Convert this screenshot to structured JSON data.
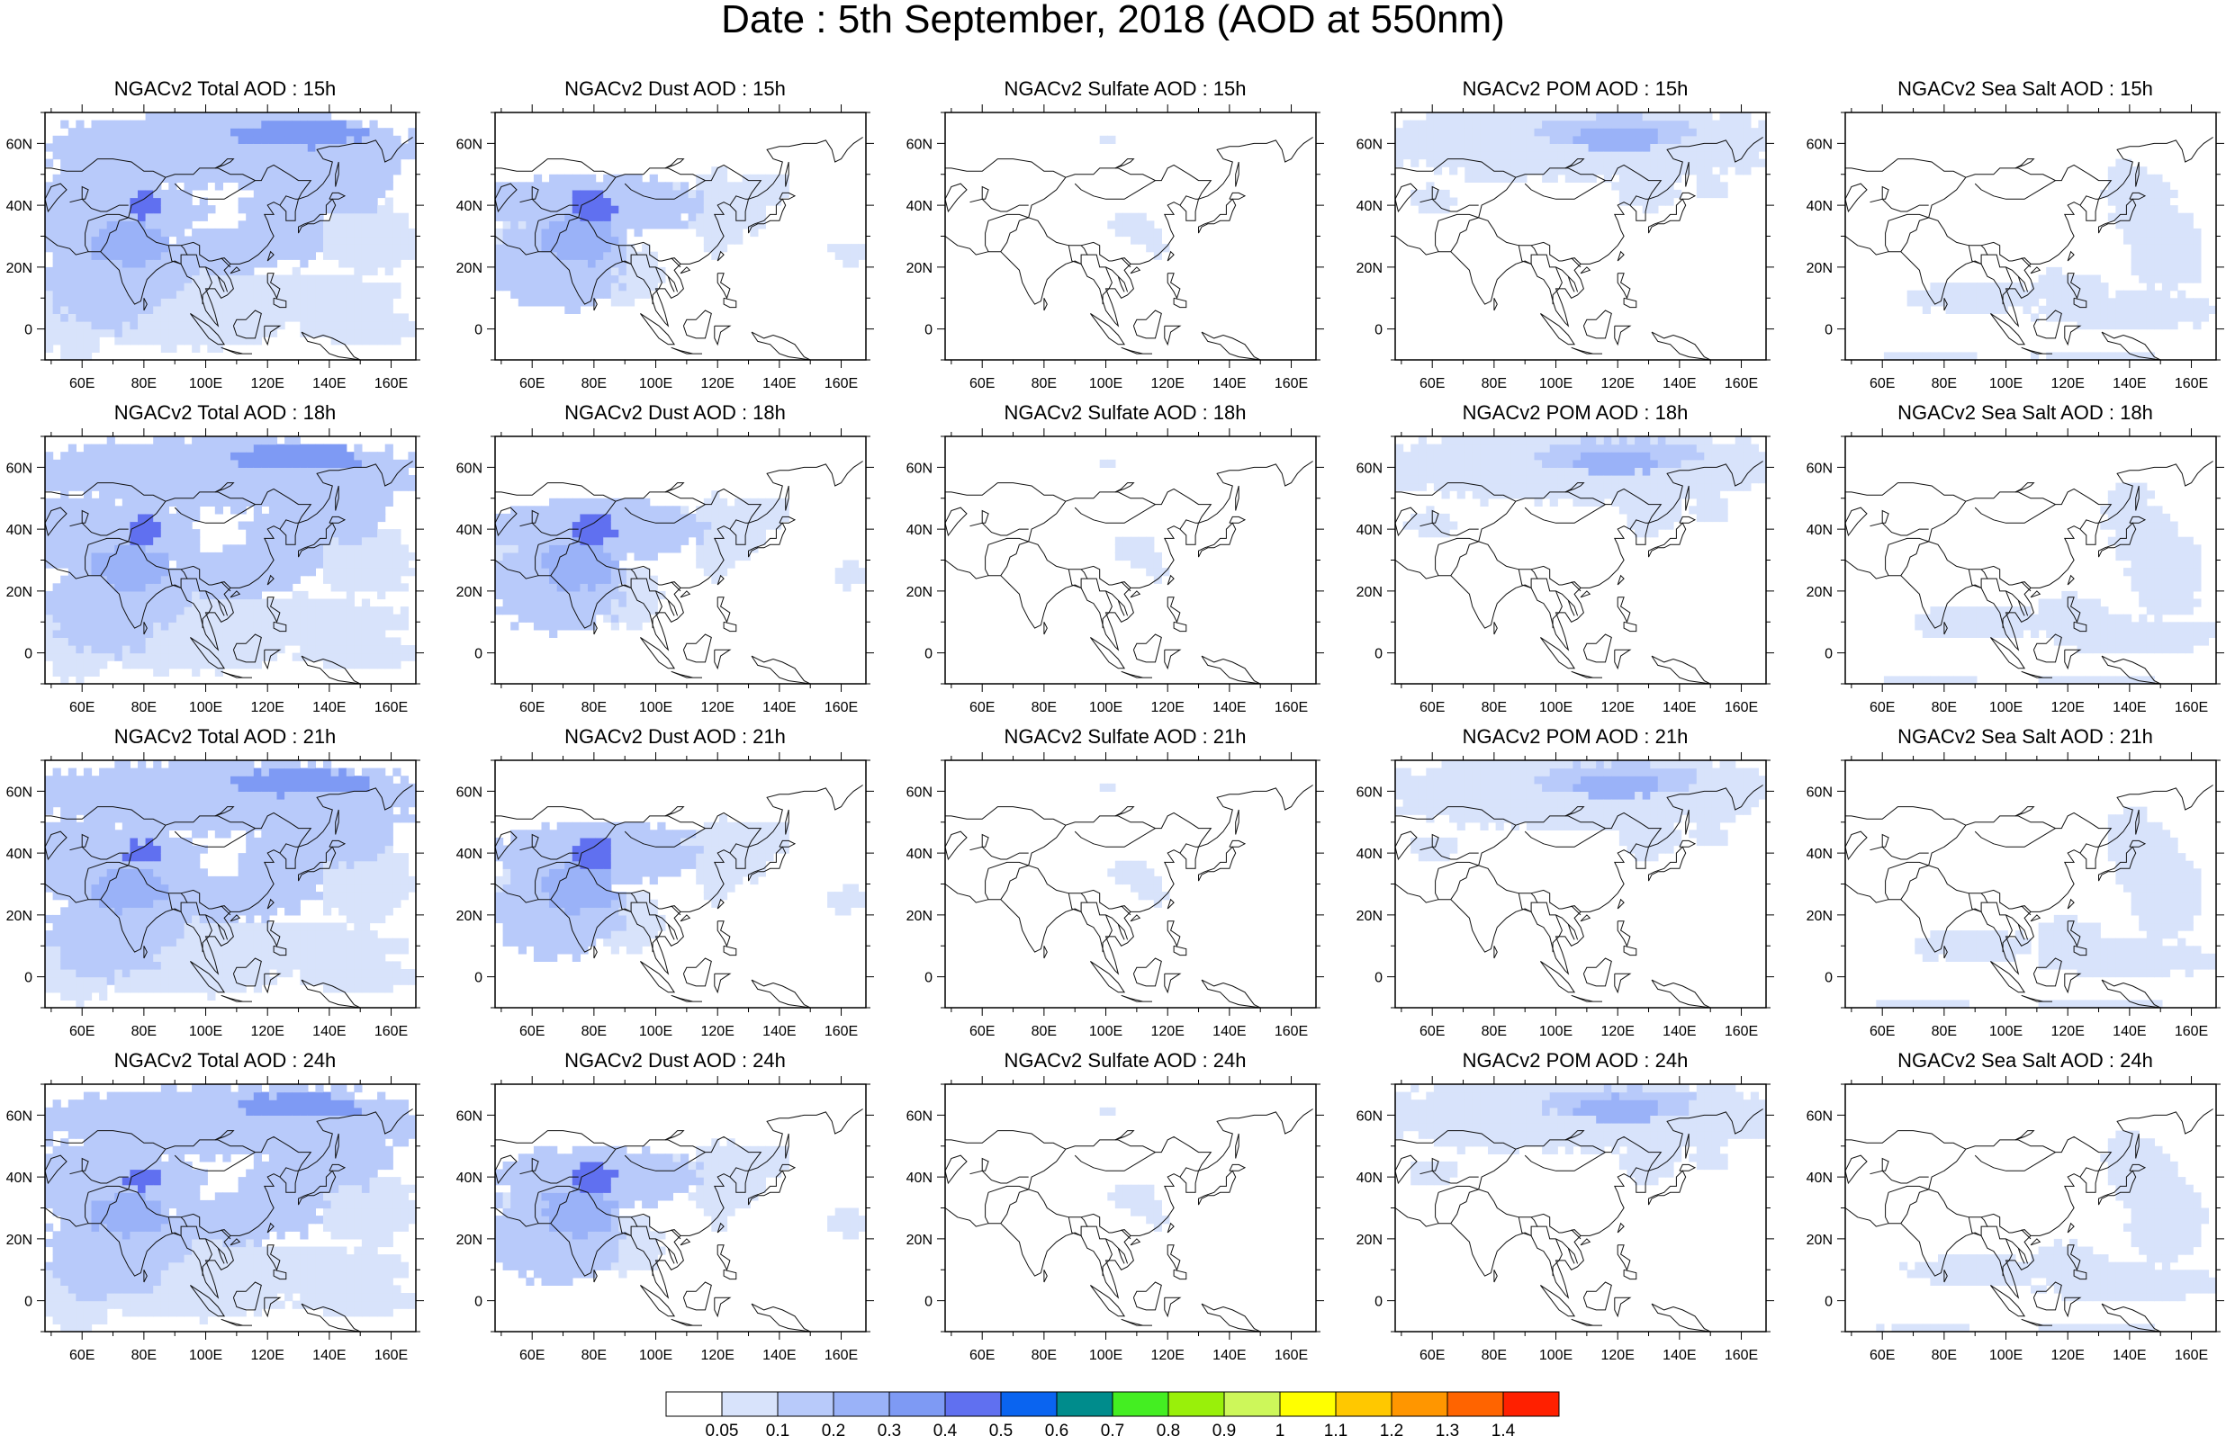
{
  "title": "Date : 5th September, 2018 (AOD at 550nm)",
  "lon_ticks": [
    "60E",
    "80E",
    "100E",
    "120E",
    "140E",
    "160E"
  ],
  "lat_ticks": [
    "60N",
    "40N",
    "20N",
    "0"
  ],
  "lon_range": [
    48,
    168
  ],
  "lat_range": [
    -10,
    70
  ],
  "panel_titles": [
    [
      "NGACv2 Total AOD : 15h",
      "NGACv2 Dust AOD : 15h",
      "NGACv2 Sulfate AOD : 15h",
      "NGACv2 POM AOD : 15h",
      "NGACv2 Sea Salt AOD : 15h"
    ],
    [
      "NGACv2 Total AOD : 18h",
      "NGACv2 Dust AOD : 18h",
      "NGACv2 Sulfate AOD : 18h",
      "NGACv2 POM AOD : 18h",
      "NGACv2 Sea Salt AOD : 18h"
    ],
    [
      "NGACv2 Total AOD : 21h",
      "NGACv2 Dust AOD : 21h",
      "NGACv2 Sulfate AOD : 21h",
      "NGACv2 POM AOD : 21h",
      "NGACv2 Sea Salt AOD : 21h"
    ],
    [
      "NGACv2 Total AOD : 24h",
      "NGACv2 Dust AOD : 24h",
      "NGACv2 Sulfate AOD : 24h",
      "NGACv2 POM AOD : 24h",
      "NGACv2 Sea Salt  AOD : 24h"
    ]
  ],
  "colorbar": {
    "labels": [
      "0.05",
      "0.1",
      "0.2",
      "0.3",
      "0.4",
      "0.5",
      "0.6",
      "0.7",
      "0.8",
      "0.9",
      "1",
      "1.1",
      "1.2",
      "1.3",
      "1.4"
    ],
    "colors": [
      "#ffffff",
      "#d8e3fb",
      "#b8cafa",
      "#9ab2f8",
      "#7e9af4",
      "#6070f0",
      "#0a64f0",
      "#008c8c",
      "#44ee22",
      "#99f00a",
      "#cdf75a",
      "#ffff00",
      "#ffc800",
      "#ff9600",
      "#ff6400",
      "#ff2000"
    ]
  }
}
